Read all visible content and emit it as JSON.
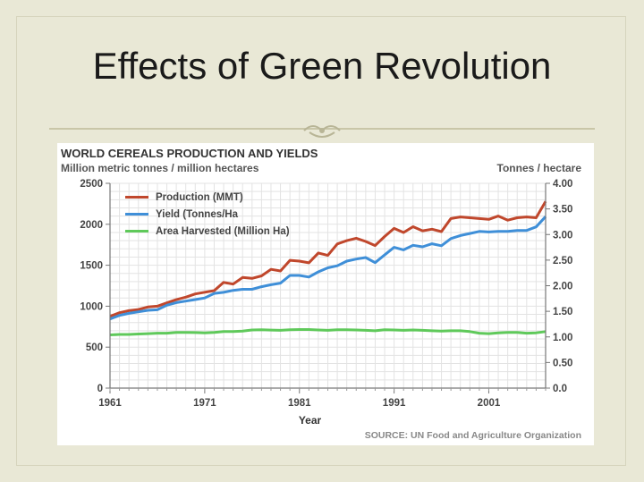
{
  "slide": {
    "title": "Effects of Green Revolution"
  },
  "chart_data": {
    "type": "line",
    "title": "WORLD CEREALS PRODUCTION AND YIELDS",
    "subtitle_left": "Million metric tonnes / million hectares",
    "subtitle_right": "Tonnes / hectare",
    "xlabel": "Year",
    "source": "SOURCE: UN Food and Agriculture Organization",
    "x_ticks": [
      "1961",
      "1971",
      "1981",
      "1991",
      "2001"
    ],
    "y_left_ticks": [
      "0",
      "500",
      "1000",
      "1500",
      "2000",
      "2500"
    ],
    "y_right_ticks": [
      "0.0",
      "0.50",
      "1.00",
      "1.50",
      "2.00",
      "2.50",
      "3.00",
      "3.50",
      "4.00"
    ],
    "xlim": [
      1961,
      2007
    ],
    "ylim_left": [
      0,
      2500
    ],
    "ylim_right": [
      0,
      4.0
    ],
    "grid": true,
    "legend_position": "top-left",
    "x": [
      1961,
      1962,
      1963,
      1964,
      1965,
      1966,
      1967,
      1968,
      1969,
      1970,
      1971,
      1972,
      1973,
      1974,
      1975,
      1976,
      1977,
      1978,
      1979,
      1980,
      1981,
      1982,
      1983,
      1984,
      1985,
      1986,
      1987,
      1988,
      1989,
      1990,
      1991,
      1992,
      1993,
      1994,
      1995,
      1996,
      1997,
      1998,
      1999,
      2000,
      2001,
      2002,
      2003,
      2004,
      2005,
      2006,
      2007
    ],
    "series": [
      {
        "name": "Production (MMT)",
        "axis": "left",
        "color": "#c0472c",
        "values": [
          877,
          920,
          945,
          960,
          990,
          1000,
          1040,
          1080,
          1110,
          1150,
          1170,
          1190,
          1290,
          1270,
          1350,
          1340,
          1370,
          1450,
          1430,
          1560,
          1550,
          1530,
          1650,
          1620,
          1760,
          1800,
          1830,
          1790,
          1740,
          1850,
          1950,
          1900,
          1970,
          1920,
          1940,
          1910,
          2070,
          2090,
          2080,
          2070,
          2060,
          2100,
          2050,
          2080,
          2090,
          2080,
          2280
        ]
      },
      {
        "name": "Yield (Tonnes/Ha",
        "axis": "right",
        "color": "#3f8fd8",
        "values": [
          1.35,
          1.42,
          1.46,
          1.49,
          1.52,
          1.53,
          1.62,
          1.67,
          1.7,
          1.73,
          1.76,
          1.85,
          1.87,
          1.91,
          1.93,
          1.93,
          1.98,
          2.02,
          2.05,
          2.2,
          2.2,
          2.17,
          2.27,
          2.35,
          2.39,
          2.48,
          2.52,
          2.55,
          2.45,
          2.6,
          2.75,
          2.7,
          2.79,
          2.76,
          2.82,
          2.78,
          2.92,
          2.98,
          3.02,
          3.06,
          3.05,
          3.06,
          3.06,
          3.08,
          3.08,
          3.15,
          3.35
        ]
      },
      {
        "name": "Area Harvested (Million Ha)",
        "axis": "left",
        "color": "#5fc95a",
        "values": [
          650,
          655,
          655,
          660,
          665,
          670,
          670,
          680,
          680,
          678,
          675,
          680,
          690,
          690,
          695,
          710,
          712,
          708,
          705,
          712,
          715,
          715,
          710,
          705,
          713,
          712,
          710,
          705,
          700,
          712,
          710,
          705,
          710,
          705,
          700,
          695,
          700,
          700,
          690,
          670,
          665,
          675,
          680,
          680,
          670,
          675,
          690
        ]
      }
    ]
  }
}
